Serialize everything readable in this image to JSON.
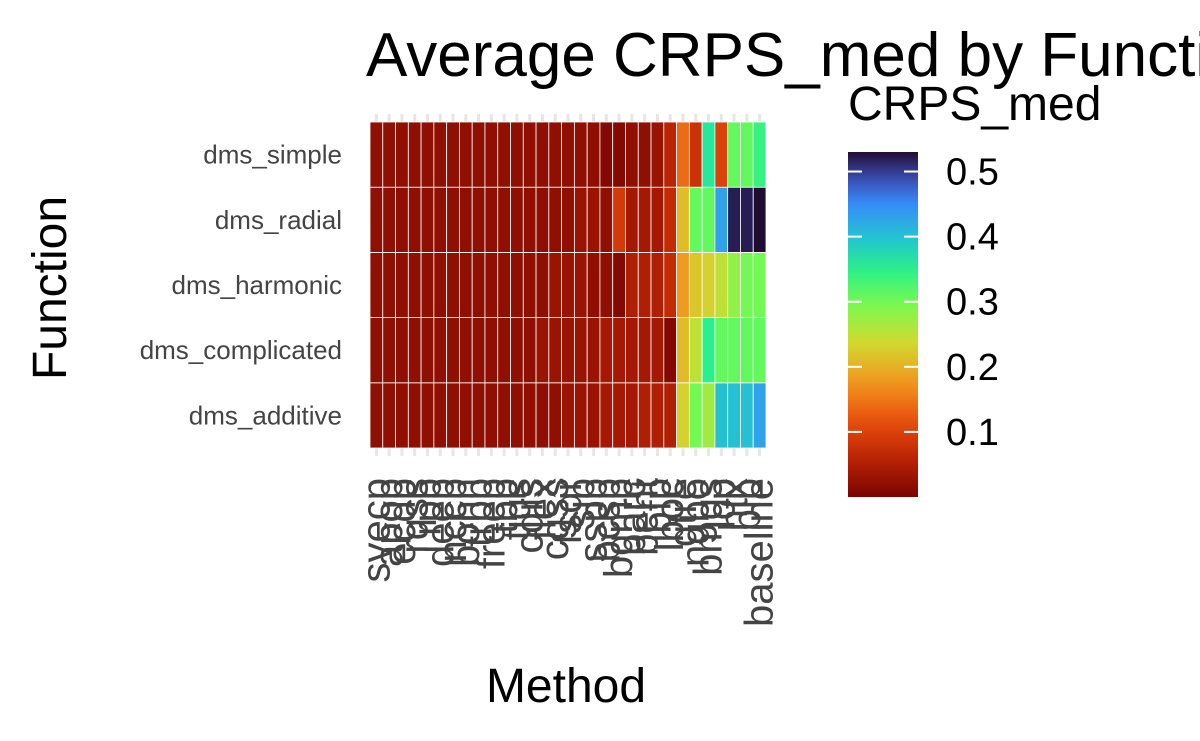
{
  "chart_data": {
    "type": "heatmap",
    "title": "Average CRPS_med by Function",
    "xlabel": "Method",
    "ylabel": "Function",
    "legend_title": "CRPS_med",
    "legend_position": "right",
    "colormap": "turbo",
    "colorbar_range": [
      0.0,
      0.53
    ],
    "colorbar_ticks": [
      "0.1",
      "0.2",
      "0.3",
      "0.4",
      "0.5"
    ],
    "colorbar_tick_values": [
      0.1,
      0.2,
      0.3,
      0.4,
      0.5
    ],
    "rows": [
      "dms_additive",
      "dms_complicated",
      "dms_harmonic",
      "dms_radial",
      "dms_simple"
    ],
    "columns": [
      "svecp",
      "ap",
      "ec",
      "rq",
      "rp",
      "de",
      "nc",
      "bo",
      "tr",
      "fr",
      "tb",
      "ti",
      "cq",
      "fl",
      "cg",
      "fs",
      "sj",
      "ss",
      "bc",
      "bg",
      "ba",
      "be",
      "bf",
      "lb",
      "gt",
      "ng",
      "bm",
      "lc",
      "ht",
      "bl",
      "baseline"
    ],
    "column_labels": [
      "svecp",
      "apop",
      "ecdp",
      "rqss",
      "rpp",
      "deep",
      "nccp",
      "bohn",
      "trbp",
      "freep",
      "tbp",
      "tiqs",
      "cqrs",
      "flex",
      "cgss",
      "fsqr",
      "sjp",
      "sspp",
      "bcsp",
      "bgmp",
      "barc",
      "bent",
      "bfp",
      "lboc",
      "gtre",
      "ngbo",
      "bmqs",
      "lcp",
      "htx",
      "blp",
      "baseline"
    ],
    "values": [
      [
        0.02,
        0.02,
        0.02,
        0.02,
        0.02,
        0.02,
        0.02,
        0.02,
        0.02,
        0.02,
        0.02,
        0.02,
        0.02,
        0.02,
        0.02,
        0.03,
        0.03,
        0.03,
        0.04,
        0.04,
        0.04,
        0.05,
        0.05,
        0.05,
        0.23,
        0.3,
        0.27,
        0.4,
        0.4,
        0.4,
        0.43
      ],
      [
        0.02,
        0.02,
        0.02,
        0.02,
        0.02,
        0.02,
        0.02,
        0.02,
        0.02,
        0.02,
        0.02,
        0.02,
        0.02,
        0.03,
        0.03,
        0.03,
        0.03,
        0.03,
        0.04,
        0.04,
        0.04,
        0.04,
        0.04,
        0.01,
        0.21,
        0.25,
        0.35,
        0.31,
        0.31,
        0.31,
        0.31
      ],
      [
        0.02,
        0.02,
        0.02,
        0.02,
        0.02,
        0.02,
        0.02,
        0.02,
        0.02,
        0.02,
        0.02,
        0.02,
        0.02,
        0.02,
        0.03,
        0.03,
        0.03,
        0.02,
        0.02,
        0.01,
        0.05,
        0.05,
        0.05,
        0.07,
        0.18,
        0.22,
        0.23,
        0.25,
        0.28,
        0.3,
        0.3
      ],
      [
        0.02,
        0.02,
        0.02,
        0.02,
        0.02,
        0.02,
        0.02,
        0.02,
        0.02,
        0.02,
        0.02,
        0.02,
        0.02,
        0.02,
        0.02,
        0.02,
        0.03,
        0.03,
        0.02,
        0.09,
        0.04,
        0.04,
        0.04,
        0.07,
        0.21,
        0.31,
        0.31,
        0.43,
        0.52,
        0.52,
        0.53
      ],
      [
        0.02,
        0.02,
        0.02,
        0.02,
        0.02,
        0.02,
        0.02,
        0.02,
        0.02,
        0.02,
        0.02,
        0.02,
        0.02,
        0.02,
        0.02,
        0.02,
        0.02,
        0.02,
        0.01,
        0.01,
        0.02,
        0.02,
        0.03,
        0.06,
        0.14,
        0.08,
        0.36,
        0.1,
        0.31,
        0.31,
        0.34
      ]
    ]
  }
}
